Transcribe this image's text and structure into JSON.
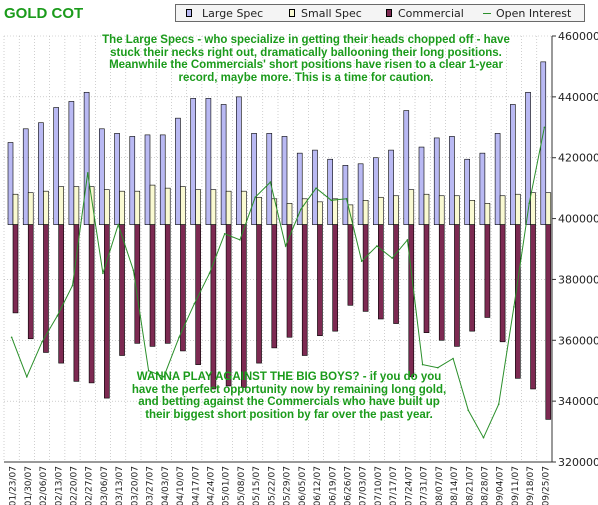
{
  "caption": "GOLD COT",
  "notes": [
    "The Large Specs - who specialize in getting their heads chopped off - have stuck their necks right out, dramatically ballooning their long positions. Meanwhile the Commercials' short positions have risen to a clear 1-year record, maybe more. This is a time for caution.",
    "WANNA PLAY AGAINST THE BIG BOYS? - if you do you have the perfect opportunity now by remaining long gold, and betting against the Commercials who have built up their biggest short position by far over the past year."
  ],
  "colors": {
    "large_spec": "#b9b9f3",
    "small_spec": "#fafad2",
    "commercial": "#7d2a52",
    "open_interest": "#2a8f2a",
    "caption_text": "#1b9b1b",
    "grid": "#b0b0b0"
  },
  "chart_data": {
    "type": "bar",
    "title": "",
    "xlabel": "",
    "ylabel": "",
    "ylim": [
      320000,
      460000
    ],
    "yticks": [
      320000,
      340000,
      360000,
      380000,
      400000,
      420000,
      440000,
      460000
    ],
    "ytick_labels": [
      "320000",
      "340000",
      "360000",
      "380000",
      "400000",
      "420000",
      "440000",
      "460000"
    ],
    "zero_reference": 398000,
    "grid": true,
    "legend_position": "top",
    "categories": [
      "01/23/07",
      "01/30/07",
      "02/06/07",
      "02/13/07",
      "02/20/07",
      "02/27/07",
      "03/06/07",
      "03/13/07",
      "03/20/07",
      "03/27/07",
      "04/03/07",
      "04/10/07",
      "04/17/07",
      "04/24/07",
      "05/01/07",
      "05/08/07",
      "05/15/07",
      "05/22/07",
      "05/29/07",
      "06/05/07",
      "06/12/07",
      "06/19/07",
      "06/26/07",
      "07/03/07",
      "07/10/07",
      "07/17/07",
      "07/24/07",
      "07/31/07",
      "08/07/07",
      "08/14/07",
      "08/21/07",
      "08/28/07",
      "09/04/07",
      "09/11/07",
      "09/18/07",
      "09/25/07"
    ],
    "xtick_labels": [
      "01/23/07",
      "01/30/07",
      "02/06/07",
      "02/13/07",
      "02/20/07",
      "02/27/07",
      "03/06/07",
      "03/13/07",
      "03/20/07",
      "03/27/07",
      "04/03/07",
      "04/10/07",
      "04/17/07",
      "04/24/07",
      "05/01/07",
      "05/08/07",
      "05/15/07",
      "05/22/07",
      "05/29/07",
      "06/05/07",
      "06/12/07",
      "06/19/07",
      "06/26/07",
      "07/03/07",
      "07/10/07",
      "07/17/07",
      "07/24/07",
      "07/31/07",
      "08/07/07",
      "08/14/07",
      "08/21/07",
      "08/28/07",
      "09/04/07",
      "09/11/07",
      "09/18/07",
      "09/25/07"
    ],
    "series": [
      {
        "name": "Large Spec",
        "kind": "bar",
        "values": [
          425000,
          429500,
          431500,
          436500,
          438500,
          441500,
          429500,
          428000,
          427000,
          427500,
          427500,
          433000,
          439500,
          439500,
          437500,
          440000,
          428000,
          428000,
          427000,
          421500,
          422500,
          419500,
          417500,
          418000,
          420000,
          422500,
          435500,
          423500,
          426500,
          427000,
          419500,
          421500,
          428000,
          437500,
          441500,
          451500
        ]
      },
      {
        "name": "Small Spec",
        "kind": "bar",
        "values": [
          408000,
          408500,
          409000,
          410500,
          410500,
          410500,
          409500,
          409000,
          409000,
          411000,
          410000,
          410500,
          409500,
          409500,
          409000,
          409000,
          407000,
          406500,
          405000,
          406500,
          405500,
          406500,
          404500,
          406000,
          407000,
          407500,
          409500,
          408000,
          407500,
          407500,
          406000,
          405000,
          407500,
          408000,
          408500,
          408500
        ]
      },
      {
        "name": "Commercial",
        "kind": "bar",
        "values": [
          369000,
          360500,
          356000,
          352500,
          346500,
          346000,
          341000,
          355000,
          359000,
          358000,
          359000,
          356500,
          352000,
          344000,
          345000,
          344500,
          352500,
          357500,
          361000,
          355000,
          361500,
          363000,
          371500,
          369500,
          367000,
          365500,
          348000,
          362500,
          360000,
          358000,
          363000,
          367500,
          359500,
          347500,
          344000,
          334000
        ]
      },
      {
        "name": "Open Interest",
        "kind": "line",
        "values": [
          361000,
          348000,
          359500,
          368000,
          378000,
          415000,
          382000,
          398000,
          383000,
          350000,
          348000,
          361000,
          372000,
          382000,
          395000,
          393000,
          407000,
          412000,
          391000,
          403000,
          410000,
          406000,
          406500,
          386000,
          391000,
          387000,
          393000,
          352000,
          351000,
          354000,
          337000,
          328000,
          339000,
          371000,
          405000,
          430000
        ]
      }
    ]
  }
}
